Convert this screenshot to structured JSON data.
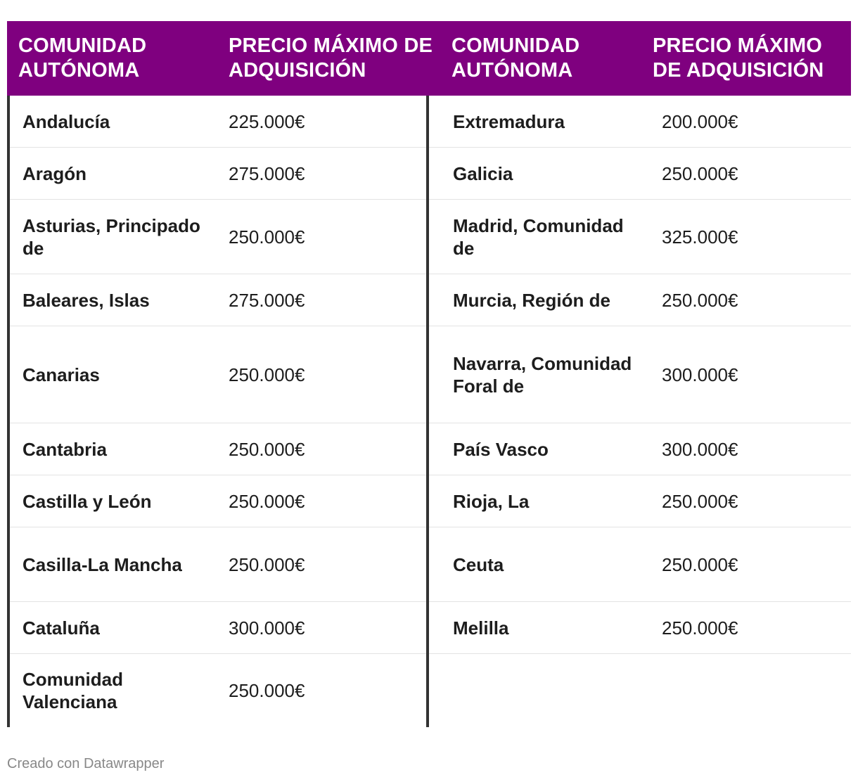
{
  "header": {
    "col1": "COMUNIDAD AUTÓNOMA",
    "col2": "PRECIO MÁXIMO DE ADQUISICIÓN",
    "col3": "COMUNIDAD AUTÓNOMA",
    "col4": "PRECIO MÁXIMO DE ADQUISICIÓN"
  },
  "left_rows": [
    {
      "name": "Andalucía",
      "price": "225.000€"
    },
    {
      "name": "Aragón",
      "price": "275.000€"
    },
    {
      "name": "Asturias, Principado de",
      "price": "250.000€"
    },
    {
      "name": "Baleares, Islas",
      "price": "275.000€"
    },
    {
      "name": "Canarias",
      "price": "250.000€"
    },
    {
      "name": "Cantabria",
      "price": "250.000€"
    },
    {
      "name": "Castilla y León",
      "price": "250.000€"
    },
    {
      "name": "Casilla-La Mancha",
      "price": "250.000€"
    },
    {
      "name": "Cataluña",
      "price": "300.000€"
    },
    {
      "name": "Comunidad Valenciana",
      "price": "250.000€"
    }
  ],
  "right_rows": [
    {
      "name": "Extremadura",
      "price": "200.000€"
    },
    {
      "name": "Galicia",
      "price": "250.000€"
    },
    {
      "name": "Madrid, Comunidad de",
      "price": "325.000€"
    },
    {
      "name": "Murcia, Región de",
      "price": "250.000€"
    },
    {
      "name": "Navarra, Comunidad Foral de",
      "price": "300.000€"
    },
    {
      "name": "País Vasco",
      "price": "300.000€"
    },
    {
      "name": "Rioja, La",
      "price": "250.000€"
    },
    {
      "name": "Ceuta",
      "price": "250.000€"
    },
    {
      "name": "Melilla",
      "price": "250.000€"
    }
  ],
  "footer": "Creado con Datawrapper",
  "colors": {
    "header_bg": "#7f007f",
    "header_text": "#ffffff"
  }
}
